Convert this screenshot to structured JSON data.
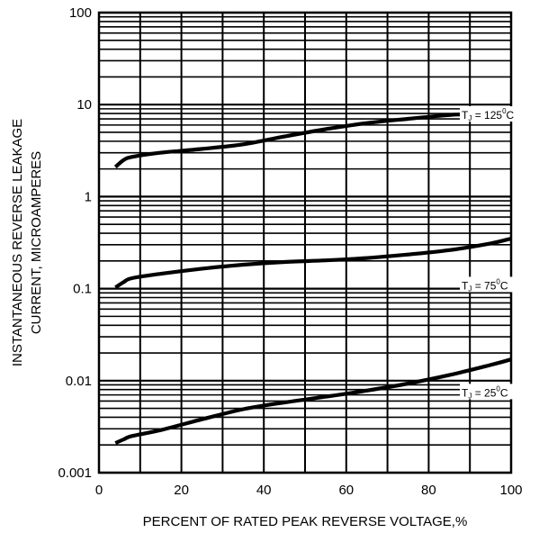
{
  "chart_data": {
    "type": "line",
    "title": "",
    "xlabel": "PERCENT OF RATED PEAK REVERSE VOLTAGE,%",
    "ylabel_lines": [
      "INSTANTANEOUS REVERSE LEAKAGE",
      "CURRENT, MICROAMPERES"
    ],
    "x_scale": "linear",
    "y_scale": "log",
    "xlim": [
      0,
      100
    ],
    "ylim": [
      0.001,
      100
    ],
    "grid": true,
    "x_ticks": [
      0,
      20,
      40,
      60,
      80,
      100
    ],
    "x_tick_labels": [
      "0",
      "20",
      "40",
      "60",
      "80",
      "100"
    ],
    "y_ticks": [
      0.001,
      0.01,
      0.1,
      1,
      10,
      100
    ],
    "y_tick_labels": [
      "0.001",
      "0.01",
      "0.1",
      "1",
      "10",
      "100"
    ],
    "series": [
      {
        "name": "TJ = 125°C",
        "label_parts": {
          "t": "T",
          "sub": "J",
          "eq": " = 125",
          "deg": "0",
          "unit": "C"
        },
        "label_at": [
          88,
          7.5
        ],
        "x": [
          4,
          6,
          8,
          15,
          25,
          35,
          45,
          55,
          65,
          75,
          85,
          95,
          100
        ],
        "y": [
          2.1,
          2.5,
          2.7,
          3.0,
          3.3,
          3.7,
          4.5,
          5.4,
          6.3,
          7.0,
          7.7,
          8.1,
          8.3
        ]
      },
      {
        "name": "TJ = 75°C",
        "label_parts": {
          "t": "T",
          "sub": "J",
          "eq": " = 75",
          "deg": "0",
          "unit": "C"
        },
        "label_at": [
          88,
          0.105
        ],
        "x": [
          4,
          6,
          8,
          15,
          25,
          35,
          45,
          55,
          65,
          75,
          85,
          95,
          100
        ],
        "y": [
          0.103,
          0.118,
          0.13,
          0.145,
          0.165,
          0.182,
          0.195,
          0.203,
          0.215,
          0.235,
          0.262,
          0.31,
          0.35
        ]
      },
      {
        "name": "TJ = 25°C",
        "label_parts": {
          "t": "T",
          "sub": "J",
          "eq": " = 25",
          "deg": "0",
          "unit": "C"
        },
        "label_at": [
          88,
          0.0072
        ],
        "x": [
          4,
          6,
          8,
          15,
          25,
          35,
          45,
          55,
          65,
          75,
          85,
          95,
          100
        ],
        "y": [
          0.0021,
          0.0023,
          0.0025,
          0.0029,
          0.0038,
          0.0049,
          0.0058,
          0.0067,
          0.0078,
          0.0093,
          0.0115,
          0.0148,
          0.017
        ]
      }
    ]
  }
}
